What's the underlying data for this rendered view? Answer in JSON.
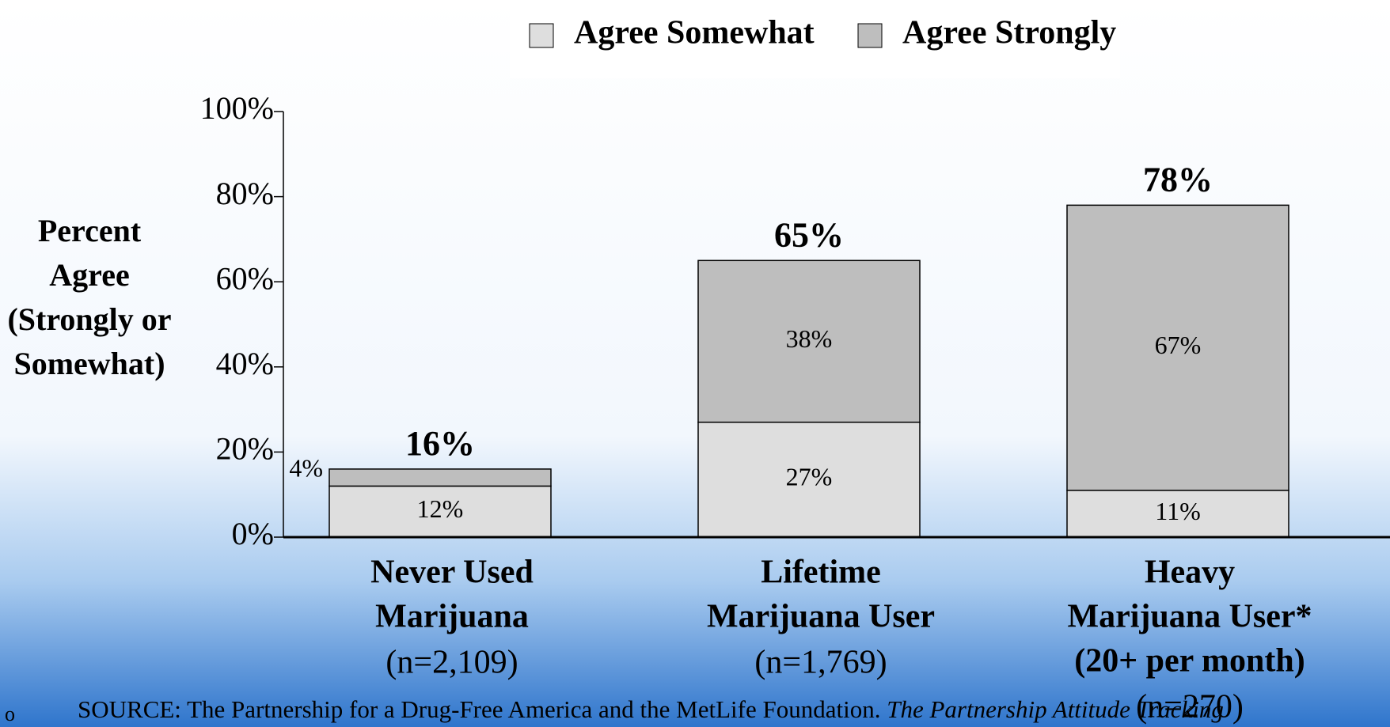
{
  "chart_data": {
    "type": "stacked-bar",
    "y_label": [
      "Percent",
      "Agree",
      "(Strongly or",
      "Somewhat)"
    ],
    "categories": [
      [
        "Never Used",
        "Marijuana"
      ],
      [
        "Lifetime",
        "Marijuana User"
      ],
      [
        "Heavy",
        "Marijuana User*",
        "(20+ per month)"
      ]
    ],
    "sample_sizes": [
      "(n=2,109)",
      "(n=1,769)",
      "(n=270)"
    ],
    "series": [
      {
        "name": "Agree Somewhat",
        "color": "#dedede",
        "values": [
          12,
          27,
          11
        ],
        "value_labels": [
          "12%",
          "27%",
          "11%"
        ]
      },
      {
        "name": "Agree Strongly",
        "color": "#bebebe",
        "values": [
          4,
          38,
          67
        ],
        "value_labels": [
          "4%",
          "38%",
          "67%"
        ]
      }
    ],
    "totals": [
      16,
      65,
      78
    ],
    "total_labels": [
      "16%",
      "65%",
      "78%"
    ],
    "ylim": [
      0,
      100
    ],
    "yticks": [
      {
        "value": 0,
        "label": "0%"
      },
      {
        "value": 20,
        "label": "20%"
      },
      {
        "value": 40,
        "label": "40%"
      },
      {
        "value": 60,
        "label": "60%"
      },
      {
        "value": 80,
        "label": "80%"
      },
      {
        "value": 100,
        "label": "100%"
      }
    ],
    "legend": "top"
  },
  "footer": {
    "source": "SOURCE: The Partnership for a Drug-Free America and the MetLife Foundation.",
    "source_title": "The Partnership Attitude Tracking"
  }
}
